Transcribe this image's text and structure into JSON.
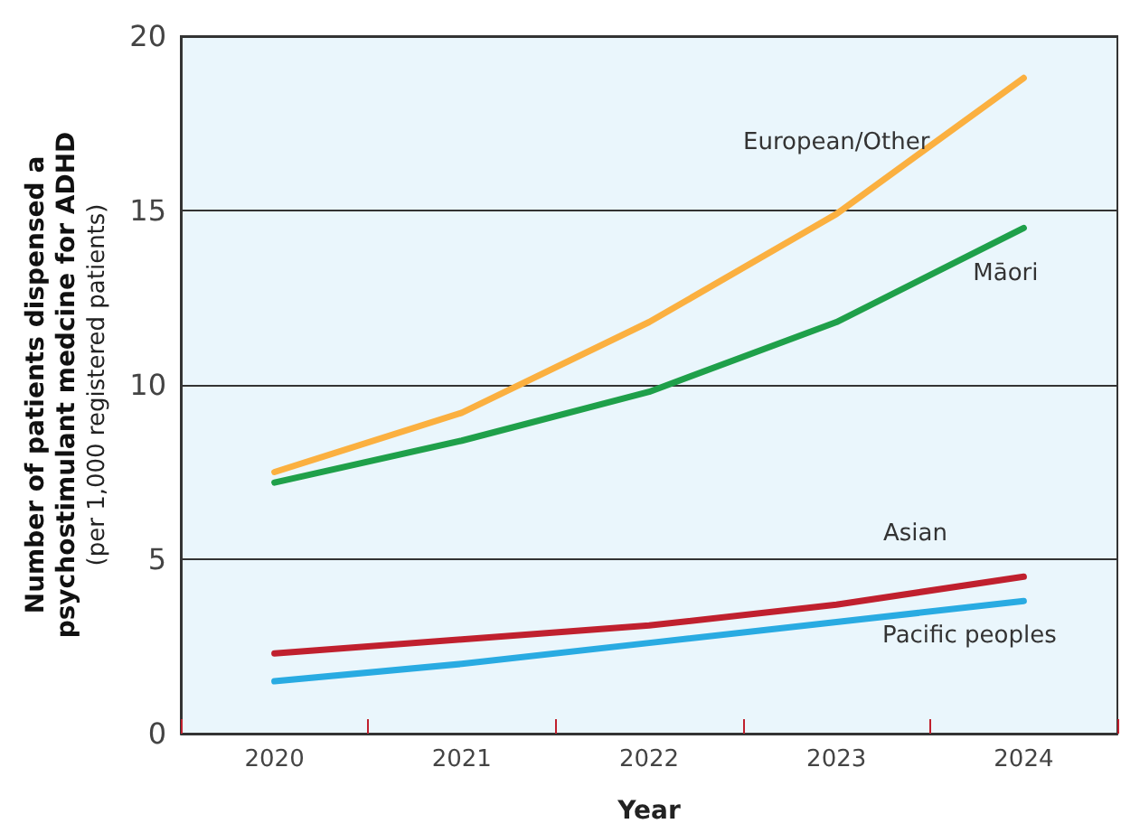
{
  "chart_data": {
    "type": "line",
    "xlabel": "Year",
    "ylabel": "Number of patients dispensed a\npsychostimulant medcine for ADHD\n(per 1,000 registered patients)",
    "categories": [
      "2020",
      "2021",
      "2022",
      "2023",
      "2024"
    ],
    "series": [
      {
        "name": "European/Other",
        "color": "#fbb040",
        "values": [
          7.5,
          9.2,
          11.8,
          14.9,
          18.8
        ]
      },
      {
        "name": "Māori",
        "color": "#1fa04a",
        "values": [
          7.2,
          8.4,
          9.8,
          11.8,
          14.5
        ]
      },
      {
        "name": "Asian",
        "color": "#c0202e",
        "values": [
          2.3,
          2.7,
          3.1,
          3.7,
          4.5
        ]
      },
      {
        "name": "Pacific peoples",
        "color": "#29abe2",
        "values": [
          1.5,
          2.0,
          2.6,
          3.2,
          3.8
        ]
      }
    ],
    "ylim": [
      0,
      20
    ],
    "yticks": [
      0,
      5,
      10,
      15,
      20
    ],
    "grid": "y",
    "legend": false,
    "marker": "none",
    "line_style": "solid"
  }
}
